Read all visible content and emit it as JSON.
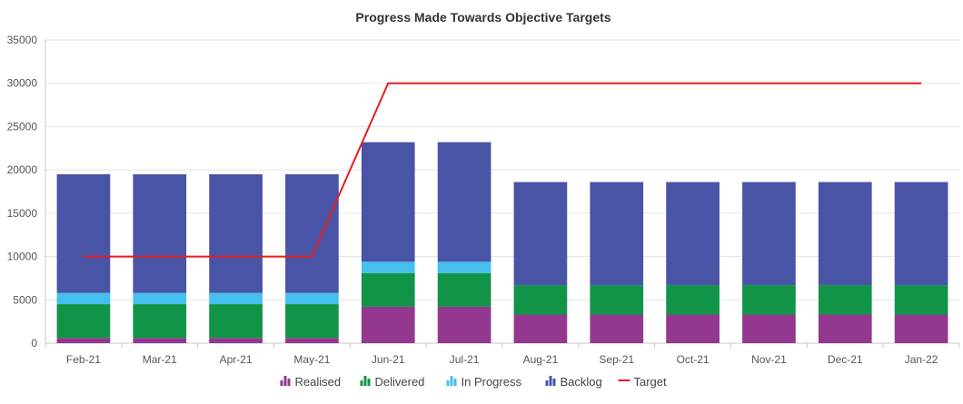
{
  "chart_data": {
    "type": "bar",
    "stacked": true,
    "title": "Progress Made Towards Objective Targets",
    "xlabel": "",
    "ylabel": "",
    "ylim": [
      0,
      35000
    ],
    "yticks": [
      0,
      5000,
      10000,
      15000,
      20000,
      25000,
      30000,
      35000
    ],
    "grid": true,
    "legend_position": "bottom",
    "categories": [
      "Feb-21",
      "Mar-21",
      "Apr-21",
      "May-21",
      "Jun-21",
      "Jul-21",
      "Aug-21",
      "Sep-21",
      "Oct-21",
      "Nov-21",
      "Dec-21",
      "Jan-22"
    ],
    "series": [
      {
        "name": "Realised",
        "kind": "bar",
        "color": "#93378f",
        "values": [
          600,
          600,
          600,
          600,
          4200,
          4200,
          3300,
          3300,
          3300,
          3300,
          3300,
          3300
        ]
      },
      {
        "name": "Delivered",
        "kind": "bar",
        "color": "#119447",
        "values": [
          3900,
          3900,
          3900,
          3900,
          3900,
          3900,
          3400,
          3400,
          3400,
          3400,
          3400,
          3400
        ]
      },
      {
        "name": "In Progress",
        "kind": "bar",
        "color": "#44bfee",
        "values": [
          1300,
          1300,
          1300,
          1300,
          1300,
          1300,
          0,
          0,
          0,
          0,
          0,
          0
        ]
      },
      {
        "name": "Backlog",
        "kind": "bar",
        "color": "#4954a6",
        "values": [
          13700,
          13700,
          13700,
          13700,
          13800,
          13800,
          11900,
          11900,
          11900,
          11900,
          11900,
          11900
        ]
      },
      {
        "name": "Target",
        "kind": "line",
        "color": "#e41e1e",
        "values": [
          10000,
          10000,
          10000,
          10000,
          30000,
          30000,
          30000,
          30000,
          30000,
          30000,
          30000,
          30000
        ]
      }
    ]
  }
}
